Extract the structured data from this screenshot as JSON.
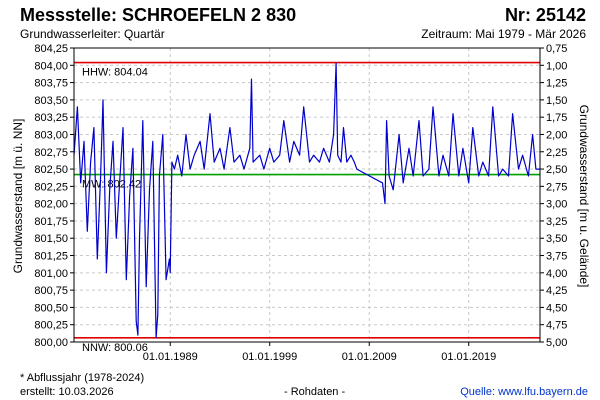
{
  "header": {
    "title": "Messstelle: SCHROEFELN 2 830",
    "number": "Nr: 25142",
    "aquifer": "Grundwasserleiter: Quartär",
    "period": "Zeitraum: Mai 1979 - Mär 2026"
  },
  "footer": {
    "note": "* Abflussjahr (1978-2024)",
    "created": "erstellt:  10.03.2026",
    "raw": "- Rohdaten -",
    "source_label": "Quelle:",
    "source_url": "www.lfu.bayern.de"
  },
  "chart_data": {
    "type": "line",
    "ylabel": "Grundwasserstand [m ü. NN]",
    "ylabel_right": "Grundwasserstand [m u. Gelände]",
    "ylim": [
      800.0,
      804.25
    ],
    "yticks": [
      "804,25",
      "804,00",
      "803,75",
      "803,50",
      "803,25",
      "803,00",
      "802,75",
      "802,50",
      "802,25",
      "802,00",
      "801,75",
      "801,50",
      "801,25",
      "801,00",
      "800,75",
      "800,50",
      "800,25",
      "800,00"
    ],
    "yticks_right": [
      "0,75",
      "1,00",
      "1,25",
      "1,50",
      "1,75",
      "2,00",
      "2,25",
      "2,50",
      "2,75",
      "3,00",
      "3,25",
      "3,50",
      "3,75",
      "4,00",
      "4,25",
      "4,50",
      "4,75",
      "5,00"
    ],
    "xlim": [
      "1979-05-01",
      "2026-03-01"
    ],
    "xticks": [
      {
        "date": "1989-01-01",
        "label": "01.01.1989"
      },
      {
        "date": "1999-01-01",
        "label": "01.01.1999"
      },
      {
        "date": "2009-01-01",
        "label": "01.01.2009"
      },
      {
        "date": "2019-01-01",
        "label": "01.01.2019"
      }
    ],
    "grid": true,
    "reference_lines": [
      {
        "label": "HHW: 804.04",
        "value": 804.04,
        "color": "#e00000"
      },
      {
        "label": "MW: 802.42",
        "value": 802.42,
        "color": "#00a000"
      },
      {
        "label": "NNW: 800.06",
        "value": 800.06,
        "color": "#e00000"
      }
    ],
    "series": [
      {
        "color": "#0000cc",
        "points": [
          [
            "1979-05-01",
            802.7
          ],
          [
            "1979-09-01",
            803.4
          ],
          [
            "1980-01-01",
            802.3
          ],
          [
            "1980-05-01",
            802.9
          ],
          [
            "1980-09-01",
            801.6
          ],
          [
            "1981-01-01",
            802.6
          ],
          [
            "1981-05-01",
            803.1
          ],
          [
            "1981-09-01",
            801.2
          ],
          [
            "1982-01-01",
            802.4
          ],
          [
            "1982-04-01",
            803.5
          ],
          [
            "1982-08-01",
            801.0
          ],
          [
            "1982-12-01",
            802.2
          ],
          [
            "1983-04-01",
            802.9
          ],
          [
            "1983-08-01",
            801.5
          ],
          [
            "1983-12-01",
            802.3
          ],
          [
            "1984-04-01",
            803.1
          ],
          [
            "1984-08-01",
            800.9
          ],
          [
            "1984-12-01",
            802.1
          ],
          [
            "1985-04-01",
            802.8
          ],
          [
            "1985-08-01",
            800.3
          ],
          [
            "1985-10-01",
            800.1
          ],
          [
            "1985-12-01",
            801.5
          ],
          [
            "1986-04-01",
            803.2
          ],
          [
            "1986-08-01",
            800.8
          ],
          [
            "1986-12-01",
            802.2
          ],
          [
            "1987-04-01",
            802.9
          ],
          [
            "1987-08-01",
            800.06
          ],
          [
            "1987-10-01",
            800.4
          ],
          [
            "1987-12-01",
            802.4
          ],
          [
            "1988-04-01",
            803.0
          ],
          [
            "1988-08-01",
            800.9
          ],
          [
            "1988-12-01",
            801.2
          ],
          [
            "1989-01-01",
            801.0
          ],
          [
            "1989-03-01",
            802.6
          ],
          [
            "1989-06-01",
            802.5
          ],
          [
            "1989-10-01",
            802.7
          ],
          [
            "1990-03-01",
            802.4
          ],
          [
            "1990-08-01",
            803.0
          ],
          [
            "1991-01-01",
            802.5
          ],
          [
            "1991-06-01",
            802.7
          ],
          [
            "1992-01-01",
            802.9
          ],
          [
            "1992-06-01",
            802.5
          ],
          [
            "1993-01-01",
            803.3
          ],
          [
            "1993-06-01",
            802.6
          ],
          [
            "1994-01-01",
            802.8
          ],
          [
            "1994-06-01",
            802.5
          ],
          [
            "1995-01-01",
            803.1
          ],
          [
            "1995-06-01",
            802.6
          ],
          [
            "1996-01-01",
            802.7
          ],
          [
            "1996-06-01",
            802.5
          ],
          [
            "1997-01-01",
            802.8
          ],
          [
            "1997-03-01",
            803.8
          ],
          [
            "1997-05-01",
            802.6
          ],
          [
            "1998-01-01",
            802.7
          ],
          [
            "1998-06-01",
            802.5
          ],
          [
            "1999-01-01",
            802.8
          ],
          [
            "1999-06-01",
            802.6
          ],
          [
            "2000-01-01",
            802.7
          ],
          [
            "2000-06-01",
            803.2
          ],
          [
            "2001-01-01",
            802.6
          ],
          [
            "2001-06-01",
            802.9
          ],
          [
            "2002-01-01",
            802.7
          ],
          [
            "2002-06-01",
            803.4
          ],
          [
            "2003-01-01",
            802.6
          ],
          [
            "2003-06-01",
            802.7
          ],
          [
            "2004-01-01",
            802.6
          ],
          [
            "2004-06-01",
            802.8
          ],
          [
            "2005-01-01",
            802.6
          ],
          [
            "2005-06-01",
            803.0
          ],
          [
            "2005-09-01",
            804.03
          ],
          [
            "2005-11-01",
            802.7
          ],
          [
            "2006-03-01",
            802.6
          ],
          [
            "2006-06-01",
            803.1
          ],
          [
            "2006-10-01",
            802.6
          ],
          [
            "2007-03-01",
            802.7
          ],
          [
            "2007-07-01",
            802.6
          ],
          [
            "2007-10-01",
            802.5
          ],
          [
            "2010-05-01",
            802.3
          ],
          [
            "2010-08-01",
            802.0
          ],
          [
            "2010-10-01",
            803.2
          ],
          [
            "2011-01-01",
            802.4
          ],
          [
            "2011-06-01",
            802.2
          ],
          [
            "2012-01-01",
            803.0
          ],
          [
            "2012-06-01",
            802.3
          ],
          [
            "2013-01-01",
            802.8
          ],
          [
            "2013-06-01",
            802.4
          ],
          [
            "2014-01-01",
            803.2
          ],
          [
            "2014-06-01",
            802.4
          ],
          [
            "2015-01-01",
            802.5
          ],
          [
            "2015-06-01",
            803.4
          ],
          [
            "2016-01-01",
            802.4
          ],
          [
            "2016-06-01",
            802.7
          ],
          [
            "2017-01-01",
            802.4
          ],
          [
            "2017-06-01",
            803.3
          ],
          [
            "2018-01-01",
            802.4
          ],
          [
            "2018-06-01",
            802.8
          ],
          [
            "2019-01-01",
            802.3
          ],
          [
            "2019-06-01",
            803.1
          ],
          [
            "2020-01-01",
            802.4
          ],
          [
            "2020-06-01",
            802.6
          ],
          [
            "2021-01-01",
            802.4
          ],
          [
            "2021-06-01",
            803.4
          ],
          [
            "2022-01-01",
            802.4
          ],
          [
            "2022-06-01",
            802.5
          ],
          [
            "2023-01-01",
            802.4
          ],
          [
            "2023-06-01",
            803.3
          ],
          [
            "2024-01-01",
            802.5
          ],
          [
            "2024-06-01",
            802.7
          ],
          [
            "2025-01-01",
            802.4
          ],
          [
            "2025-06-01",
            803.0
          ],
          [
            "2025-10-01",
            802.5
          ],
          [
            "2026-03-01",
            802.5
          ]
        ]
      }
    ]
  }
}
